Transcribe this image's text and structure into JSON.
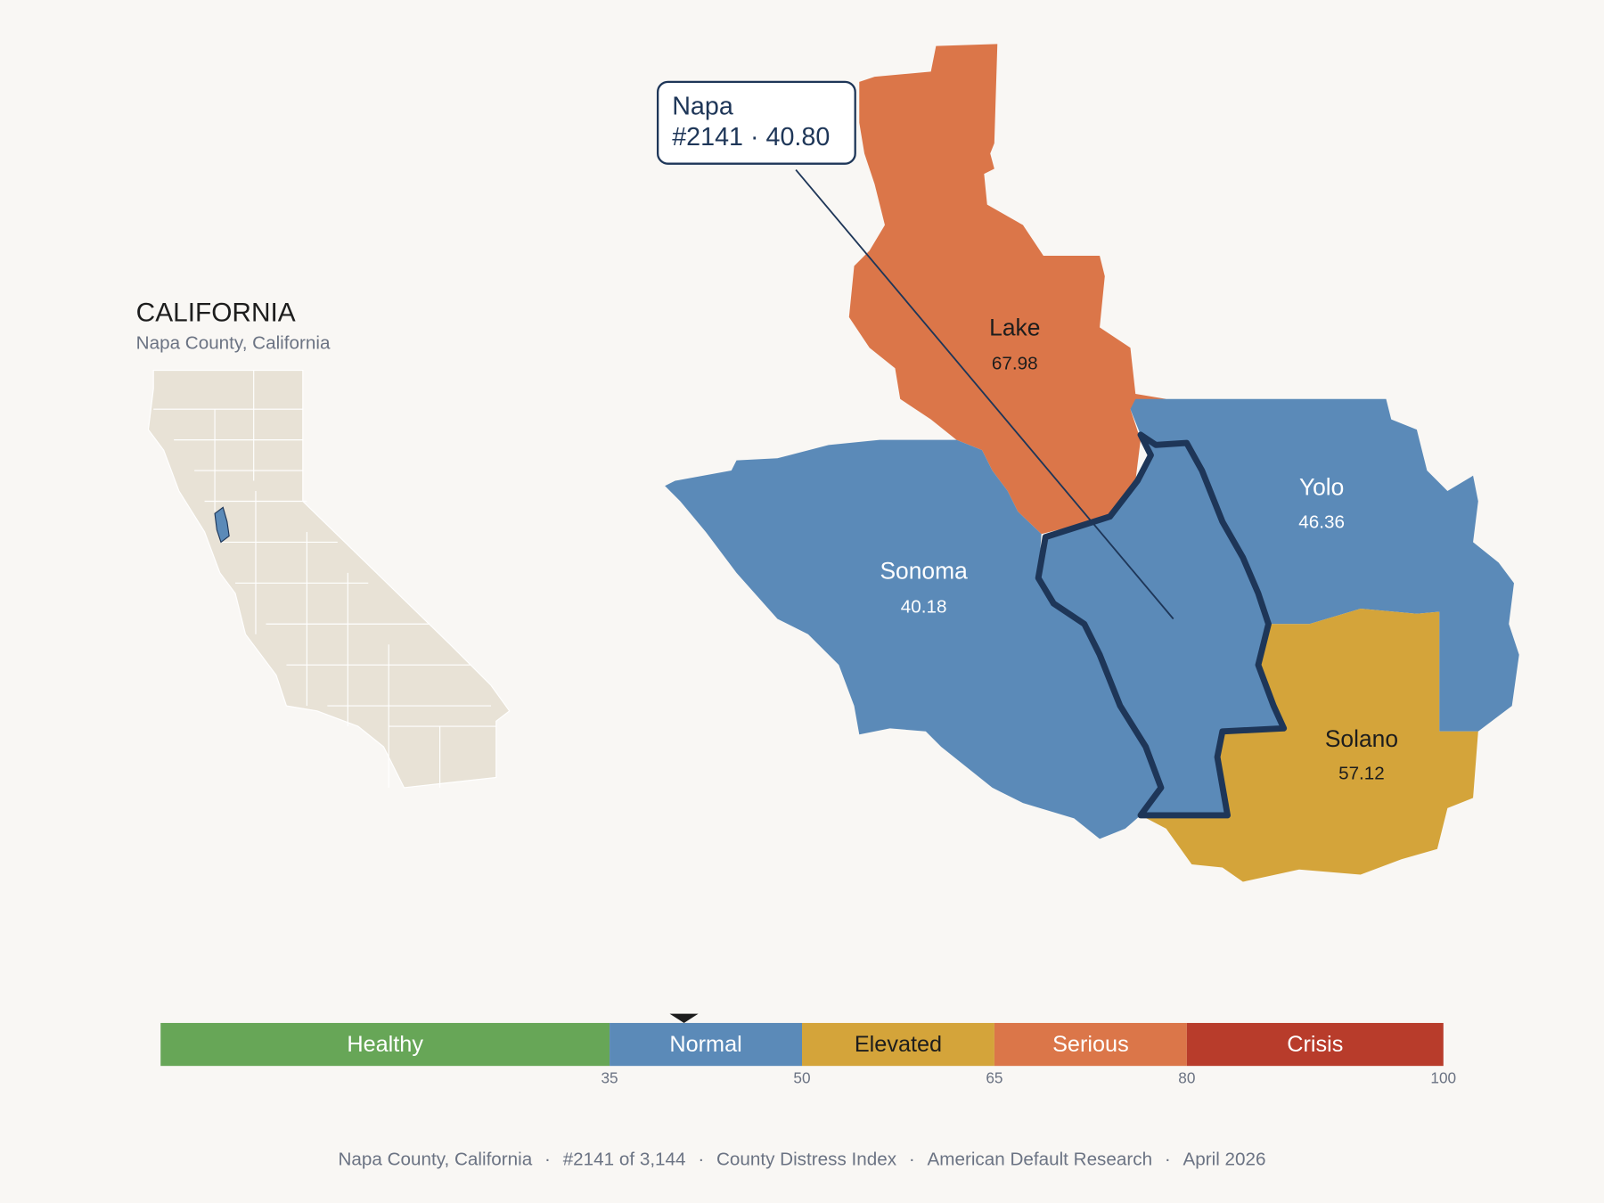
{
  "title": "CALIFORNIA",
  "subtitle": "Napa County, California",
  "selected": {
    "name": "Napa",
    "rank": "#2141",
    "separator": "·",
    "value": 40.8,
    "value_label": "40.80",
    "color": "#5b8ab8"
  },
  "counties": [
    {
      "name": "Lake",
      "value": 67.98,
      "color": "#db7649"
    },
    {
      "name": "Sonoma",
      "value": 40.18,
      "color": "#5b8ab8"
    },
    {
      "name": "Yolo",
      "value": 46.36,
      "color": "#5b8ab8"
    },
    {
      "name": "Solano",
      "value": 57.12,
      "color": "#d4a43a"
    }
  ],
  "scale": {
    "range": [
      0,
      100
    ],
    "ticks": [
      35,
      50,
      65,
      80,
      100
    ],
    "bands": [
      {
        "label": "Healthy",
        "color": "#67a657"
      },
      {
        "label": "Normal",
        "color": "#5b8ab8"
      },
      {
        "label": "Elevated",
        "color": "#d4a43a"
      },
      {
        "label": "Serious",
        "color": "#db7649"
      },
      {
        "label": "Crisis",
        "color": "#b83c2b"
      }
    ]
  },
  "footer": {
    "items": [
      "Napa County, California",
      "#2141 of 3,144",
      "County Distress Index",
      "American Default Research",
      "April 2026"
    ],
    "separator": "·"
  }
}
